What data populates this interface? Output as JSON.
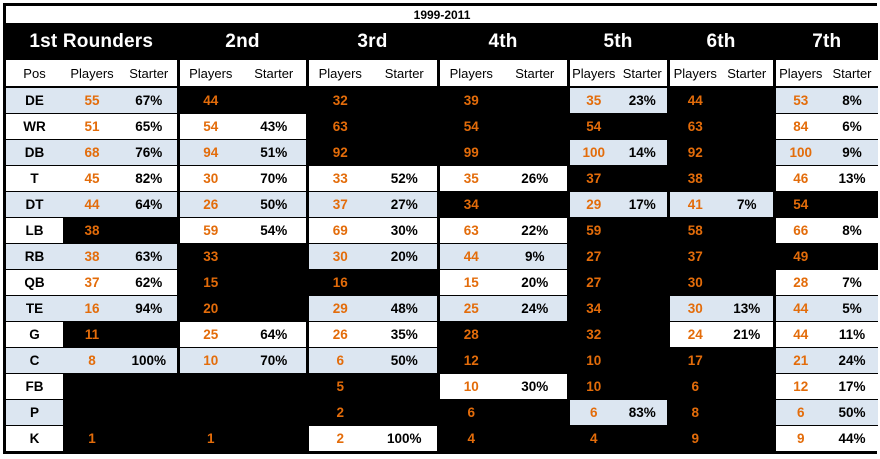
{
  "title": "1999-2011",
  "colors": {
    "accent_orange": "#e36c0a",
    "row_shade_blue": "#dce6f1",
    "band_bg": "#000000",
    "band_text": "#ffffff"
  },
  "chart_data": {
    "type": "table",
    "title": "1999-2011",
    "rounds": [
      "1st Rounders",
      "2nd",
      "3rd",
      "4th",
      "5th",
      "6th",
      "7th"
    ],
    "columns": {
      "pos": "Pos",
      "players": "Players",
      "starter": "Starter"
    },
    "note_filled_cells": "filled=true means the cell area is blacked out (no starter % shown)",
    "rows": [
      {
        "pos": "DE",
        "cells": [
          {
            "players": "55",
            "starter": "67%",
            "filled": false
          },
          {
            "players": "44",
            "starter": "",
            "filled": true
          },
          {
            "players": "32",
            "starter": "",
            "filled": true
          },
          {
            "players": "39",
            "starter": "",
            "filled": true
          },
          {
            "players": "35",
            "starter": "23%",
            "filled": false
          },
          {
            "players": "44",
            "starter": "",
            "filled": true
          },
          {
            "players": "53",
            "starter": "8%",
            "filled": false
          }
        ]
      },
      {
        "pos": "WR",
        "cells": [
          {
            "players": "51",
            "starter": "65%",
            "filled": false
          },
          {
            "players": "54",
            "starter": "43%",
            "filled": false
          },
          {
            "players": "63",
            "starter": "",
            "filled": true
          },
          {
            "players": "54",
            "starter": "",
            "filled": true
          },
          {
            "players": "54",
            "starter": "",
            "filled": true
          },
          {
            "players": "63",
            "starter": "",
            "filled": true
          },
          {
            "players": "84",
            "starter": "6%",
            "filled": false
          }
        ]
      },
      {
        "pos": "DB",
        "cells": [
          {
            "players": "68",
            "starter": "76%",
            "filled": false
          },
          {
            "players": "94",
            "starter": "51%",
            "filled": false
          },
          {
            "players": "92",
            "starter": "",
            "filled": true
          },
          {
            "players": "99",
            "starter": "",
            "filled": true
          },
          {
            "players": "100",
            "starter": "14%",
            "filled": false
          },
          {
            "players": "92",
            "starter": "",
            "filled": true
          },
          {
            "players": "100",
            "starter": "9%",
            "filled": false
          }
        ]
      },
      {
        "pos": "T",
        "cells": [
          {
            "players": "45",
            "starter": "82%",
            "filled": false
          },
          {
            "players": "30",
            "starter": "70%",
            "filled": false
          },
          {
            "players": "33",
            "starter": "52%",
            "filled": false
          },
          {
            "players": "35",
            "starter": "26%",
            "filled": false
          },
          {
            "players": "37",
            "starter": "",
            "filled": true
          },
          {
            "players": "38",
            "starter": "",
            "filled": true
          },
          {
            "players": "46",
            "starter": "13%",
            "filled": false
          }
        ]
      },
      {
        "pos": "DT",
        "cells": [
          {
            "players": "44",
            "starter": "64%",
            "filled": false
          },
          {
            "players": "26",
            "starter": "50%",
            "filled": false
          },
          {
            "players": "37",
            "starter": "27%",
            "filled": false
          },
          {
            "players": "34",
            "starter": "",
            "filled": true
          },
          {
            "players": "29",
            "starter": "17%",
            "filled": false
          },
          {
            "players": "41",
            "starter": "7%",
            "filled": false
          },
          {
            "players": "54",
            "starter": "",
            "filled": true
          }
        ]
      },
      {
        "pos": "LB",
        "cells": [
          {
            "players": "38",
            "starter": "",
            "filled": true
          },
          {
            "players": "59",
            "starter": "54%",
            "filled": false
          },
          {
            "players": "69",
            "starter": "30%",
            "filled": false
          },
          {
            "players": "63",
            "starter": "22%",
            "filled": false
          },
          {
            "players": "59",
            "starter": "",
            "filled": true
          },
          {
            "players": "58",
            "starter": "",
            "filled": true
          },
          {
            "players": "66",
            "starter": "8%",
            "filled": false
          }
        ]
      },
      {
        "pos": "RB",
        "cells": [
          {
            "players": "38",
            "starter": "63%",
            "filled": false
          },
          {
            "players": "33",
            "starter": "",
            "filled": true
          },
          {
            "players": "30",
            "starter": "20%",
            "filled": false
          },
          {
            "players": "44",
            "starter": "9%",
            "filled": false
          },
          {
            "players": "27",
            "starter": "",
            "filled": true
          },
          {
            "players": "37",
            "starter": "",
            "filled": true
          },
          {
            "players": "49",
            "starter": "",
            "filled": true
          }
        ]
      },
      {
        "pos": "QB",
        "cells": [
          {
            "players": "37",
            "starter": "62%",
            "filled": false
          },
          {
            "players": "15",
            "starter": "",
            "filled": true
          },
          {
            "players": "16",
            "starter": "",
            "filled": true
          },
          {
            "players": "15",
            "starter": "20%",
            "filled": false
          },
          {
            "players": "27",
            "starter": "",
            "filled": true
          },
          {
            "players": "30",
            "starter": "",
            "filled": true
          },
          {
            "players": "28",
            "starter": "7%",
            "filled": false
          }
        ]
      },
      {
        "pos": "TE",
        "cells": [
          {
            "players": "16",
            "starter": "94%",
            "filled": false
          },
          {
            "players": "20",
            "starter": "",
            "filled": true
          },
          {
            "players": "29",
            "starter": "48%",
            "filled": false
          },
          {
            "players": "25",
            "starter": "24%",
            "filled": false
          },
          {
            "players": "34",
            "starter": "",
            "filled": true
          },
          {
            "players": "30",
            "starter": "13%",
            "filled": false
          },
          {
            "players": "44",
            "starter": "5%",
            "filled": false
          }
        ]
      },
      {
        "pos": "G",
        "cells": [
          {
            "players": "11",
            "starter": "",
            "filled": true
          },
          {
            "players": "25",
            "starter": "64%",
            "filled": false
          },
          {
            "players": "26",
            "starter": "35%",
            "filled": false
          },
          {
            "players": "28",
            "starter": "",
            "filled": true
          },
          {
            "players": "32",
            "starter": "",
            "filled": true
          },
          {
            "players": "24",
            "starter": "21%",
            "filled": false
          },
          {
            "players": "44",
            "starter": "11%",
            "filled": false
          }
        ]
      },
      {
        "pos": "C",
        "cells": [
          {
            "players": "8",
            "starter": "100%",
            "filled": false
          },
          {
            "players": "10",
            "starter": "70%",
            "filled": false
          },
          {
            "players": "6",
            "starter": "50%",
            "filled": false
          },
          {
            "players": "12",
            "starter": "",
            "filled": true
          },
          {
            "players": "10",
            "starter": "",
            "filled": true
          },
          {
            "players": "17",
            "starter": "",
            "filled": true
          },
          {
            "players": "21",
            "starter": "24%",
            "filled": false
          }
        ]
      },
      {
        "pos": "FB",
        "cells": [
          {
            "players": "",
            "starter": "",
            "filled": true
          },
          {
            "players": "",
            "starter": "",
            "filled": true
          },
          {
            "players": "5",
            "starter": "",
            "filled": true
          },
          {
            "players": "10",
            "starter": "30%",
            "filled": false
          },
          {
            "players": "10",
            "starter": "",
            "filled": true
          },
          {
            "players": "6",
            "starter": "",
            "filled": true
          },
          {
            "players": "12",
            "starter": "17%",
            "filled": false
          }
        ]
      },
      {
        "pos": "P",
        "cells": [
          {
            "players": "",
            "starter": "",
            "filled": true
          },
          {
            "players": "",
            "starter": "",
            "filled": true
          },
          {
            "players": "2",
            "starter": "",
            "filled": true
          },
          {
            "players": "6",
            "starter": "",
            "filled": true
          },
          {
            "players": "6",
            "starter": "83%",
            "filled": false
          },
          {
            "players": "8",
            "starter": "",
            "filled": true
          },
          {
            "players": "6",
            "starter": "50%",
            "filled": false
          }
        ]
      },
      {
        "pos": "K",
        "cells": [
          {
            "players": "1",
            "starter": "",
            "filled": true
          },
          {
            "players": "1",
            "starter": "",
            "filled": true
          },
          {
            "players": "2",
            "starter": "100%",
            "filled": false
          },
          {
            "players": "4",
            "starter": "",
            "filled": true
          },
          {
            "players": "4",
            "starter": "",
            "filled": true
          },
          {
            "players": "9",
            "starter": "",
            "filled": true
          },
          {
            "players": "9",
            "starter": "44%",
            "filled": false
          }
        ]
      }
    ]
  }
}
